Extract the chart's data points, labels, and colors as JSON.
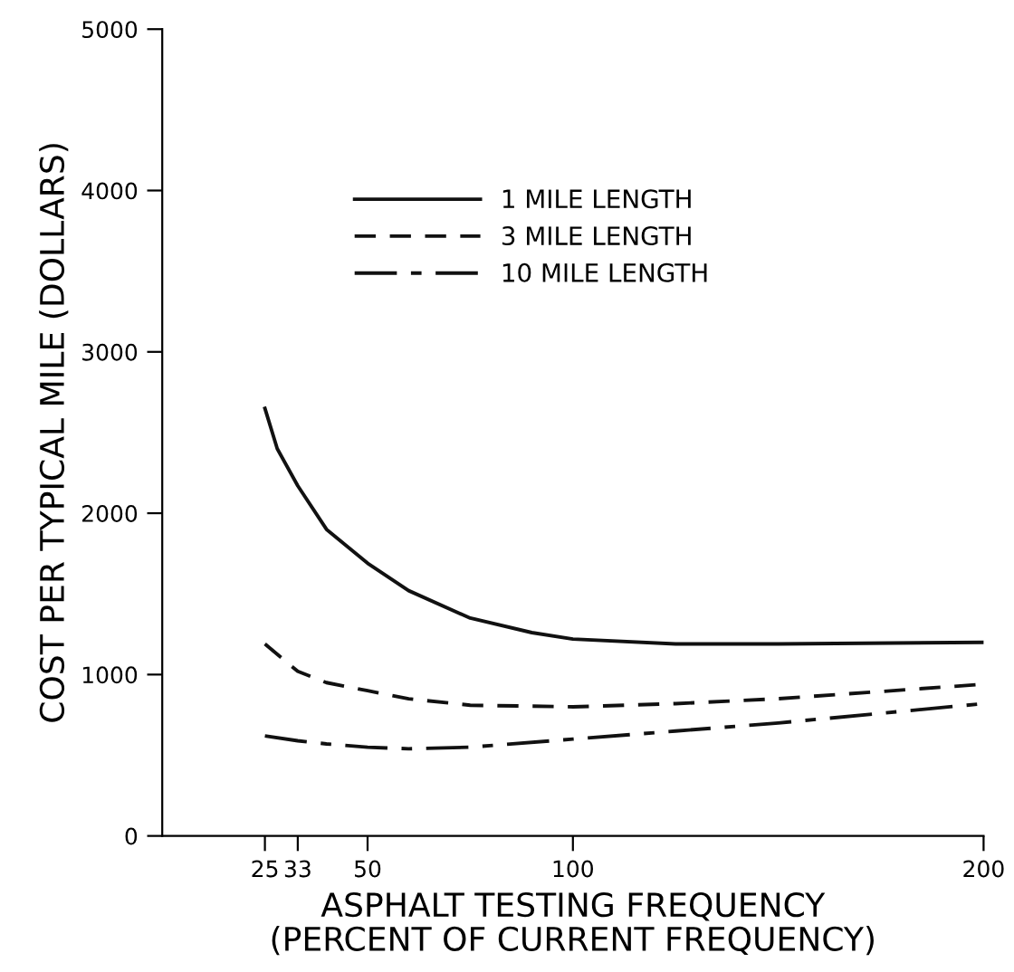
{
  "chart_data": {
    "type": "line",
    "xlabel": "ASPHALT TESTING FREQUENCY\n(PERCENT OF CURRENT FREQUENCY)",
    "ylabel": "COST PER TYPICAL MILE (DOLLARS)",
    "xlim": [
      0,
      200
    ],
    "xticks": [
      25,
      33,
      50,
      100,
      200
    ],
    "ylim": [
      0,
      5000
    ],
    "yticks": [
      0,
      1000,
      2000,
      3000,
      4000,
      5000
    ],
    "grid": false,
    "legend": "top",
    "marker": "none",
    "series": [
      {
        "name": "1 MILE LENGTH",
        "color": "#111111",
        "line_style": "solid",
        "x": [
          25,
          28,
          33,
          40,
          50,
          60,
          75,
          90,
          100,
          125,
          150,
          200
        ],
        "values": [
          2650,
          2400,
          2170,
          1900,
          1690,
          1520,
          1350,
          1260,
          1220,
          1190,
          1190,
          1200
        ]
      },
      {
        "name": "3 MILE LENGTH",
        "color": "#111111",
        "line_style": "dashed",
        "x": [
          25,
          33,
          40,
          50,
          60,
          75,
          100,
          125,
          150,
          200
        ],
        "values": [
          1190,
          1020,
          950,
          900,
          850,
          810,
          800,
          820,
          850,
          940
        ]
      },
      {
        "name": "10 MILE LENGTH",
        "color": "#111111",
        "line_style": "dashdot",
        "x": [
          25,
          33,
          40,
          50,
          60,
          75,
          100,
          125,
          150,
          200
        ],
        "values": [
          620,
          590,
          570,
          550,
          540,
          550,
          600,
          650,
          700,
          820
        ]
      }
    ]
  }
}
